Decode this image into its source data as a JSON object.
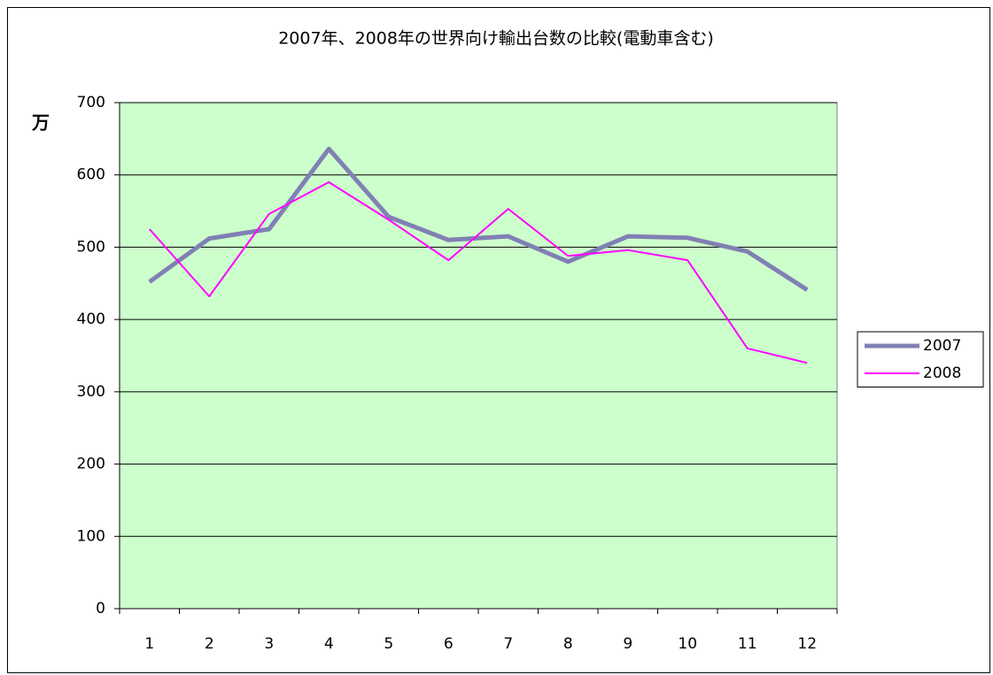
{
  "chart_data": {
    "type": "line",
    "title": "2007年、2008年の世界向け輸出台数の比較(電動車含む)",
    "y_label": "万",
    "categories": [
      1,
      2,
      3,
      4,
      5,
      6,
      7,
      8,
      9,
      10,
      11,
      12
    ],
    "series": [
      {
        "name": "2007",
        "color": "#8080b4",
        "values": [
          452,
          512,
          525,
          636,
          542,
          510,
          515,
          480,
          515,
          513,
          494,
          441
        ]
      },
      {
        "name": "2008",
        "color": "#ff00ff",
        "values": [
          525,
          432,
          546,
          590,
          538,
          482,
          553,
          488,
          496,
          482,
          360,
          340
        ]
      }
    ],
    "ylim": [
      0,
      700
    ],
    "yticks": [
      0,
      100,
      200,
      300,
      400,
      500,
      600,
      700
    ],
    "grid": true,
    "legend": "right",
    "background": "#ccffcc"
  }
}
